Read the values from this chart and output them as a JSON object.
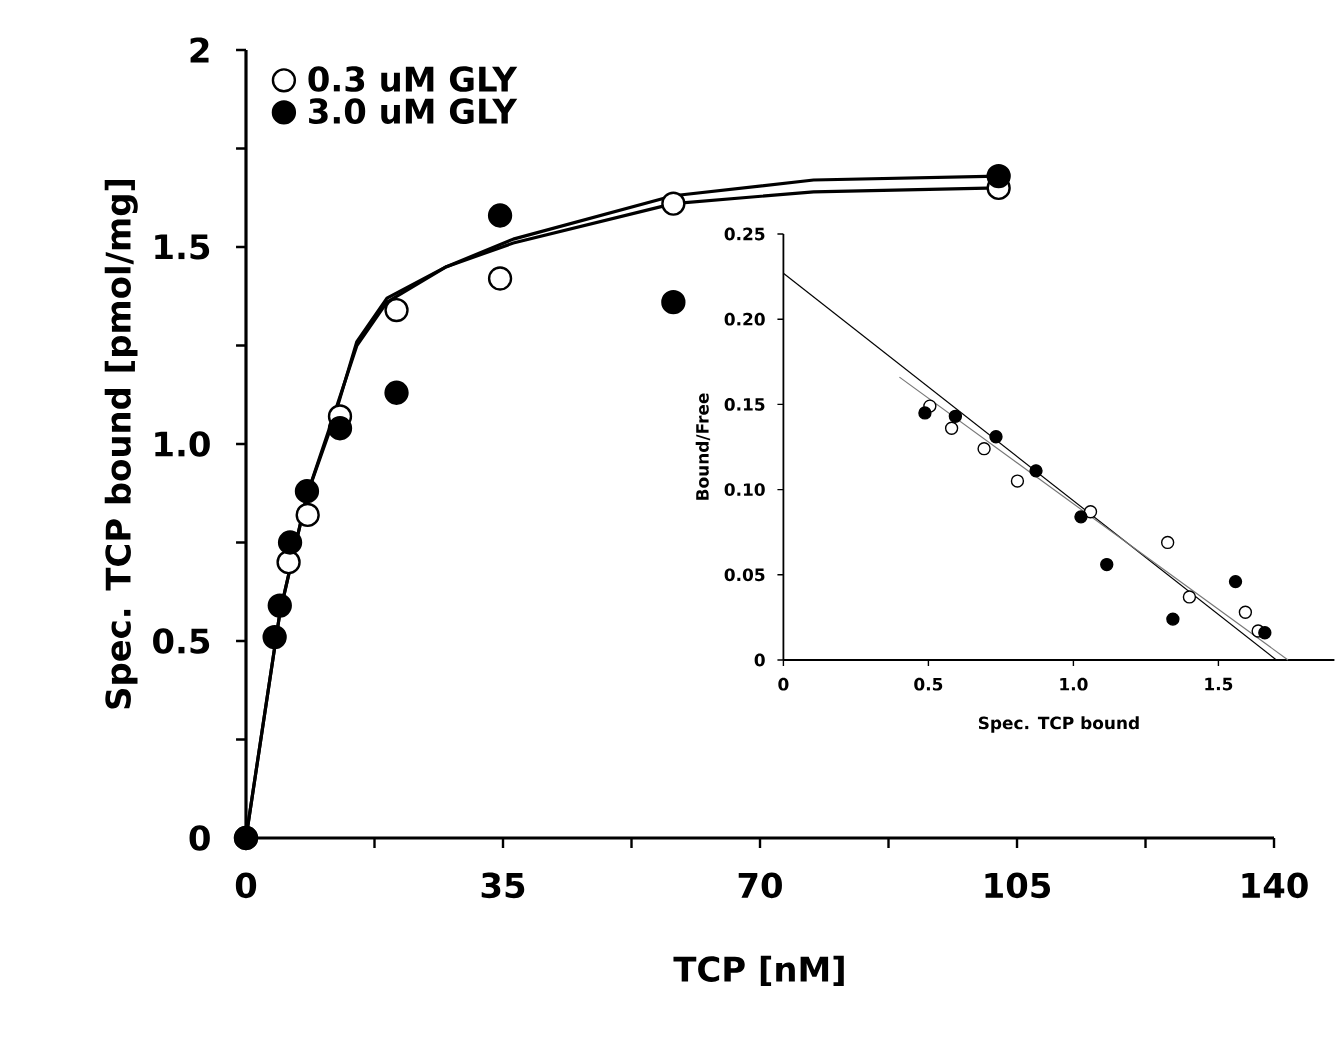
{
  "chart_data": [
    {
      "type": "scatter",
      "xlabel": "TCP [nM]",
      "ylabel": "Spec. TCP bound [pmol/mg]",
      "xlim": [
        0,
        140
      ],
      "ylim": [
        0,
        2
      ],
      "xticks": [
        0,
        {
          "value": 17.5,
          "label": null
        },
        35,
        {
          "value": 52.5,
          "label": null
        },
        70,
        {
          "value": 87.5,
          "label": null
        },
        105,
        {
          "value": 122.5,
          "label": null
        },
        140
      ],
      "yticks": [
        0,
        {
          "value": 0.25,
          "label": null
        },
        0.5,
        {
          "value": 0.75,
          "label": null
        },
        {
          "value": 1,
          "label": "1.0"
        },
        {
          "value": 1.25,
          "label": null
        },
        1.5,
        {
          "value": 1.75,
          "label": null
        },
        2
      ],
      "legend": "top left",
      "series": [
        {
          "name": "0.3 uM GLY",
          "color": "#ffffff",
          "marker": "circle",
          "x": [
            0,
            5.8,
            8.4,
            12.8,
            20.5,
            34.6,
            58.2,
            102.5
          ],
          "values": [
            0,
            0.7,
            0.82,
            1.07,
            1.34,
            1.42,
            1.61,
            1.65
          ]
        },
        {
          "name": "3.0 uM GLY",
          "color": "#000000",
          "marker": "circle",
          "x": [
            0,
            3.9,
            4.6,
            6.0,
            8.3,
            12.8,
            20.5,
            34.6,
            58.2,
            102.5
          ],
          "values": [
            0,
            0.51,
            0.59,
            0.75,
            0.88,
            1.04,
            1.13,
            1.58,
            1.36,
            1.68
          ]
        },
        {
          "type": "line",
          "color": "#000000",
          "marker": "none",
          "x": [
            0,
            4.6,
            8.3,
            11.9,
            15.1,
            19.2,
            27.3,
            36.4,
            58.2,
            77.3,
            102.5
          ],
          "values": [
            0,
            0.57,
            0.87,
            1.06,
            1.26,
            1.37,
            1.45,
            1.51,
            1.61,
            1.64,
            1.65
          ]
        },
        {
          "type": "line",
          "color": "#000000",
          "marker": "none",
          "x": [
            0,
            4.6,
            8.3,
            11.9,
            15.1,
            19.2,
            27.3,
            36.4,
            58.2,
            77.3,
            102.5
          ],
          "values": [
            0,
            0.57,
            0.87,
            1.07,
            1.25,
            1.36,
            1.45,
            1.52,
            1.63,
            1.67,
            1.68
          ]
        }
      ]
    },
    {
      "type": "scatter",
      "xlabel": "Spec. TCP bound",
      "ylabel": "Bound/Free",
      "xlim": [
        0,
        1.9
      ],
      "ylim": [
        0,
        0.25
      ],
      "xticks": [
        0,
        0.5,
        {
          "value": 1,
          "label": "1.0"
        },
        1.5
      ],
      "yticks": [
        0,
        0.05,
        {
          "value": 0.1,
          "label": "0.10"
        },
        0.15,
        {
          "value": 0.2,
          "label": "0.20"
        },
        0.25
      ],
      "series": [
        {
          "color": "#ffffff",
          "marker": "circle",
          "x": [
            0.505,
            0.58,
            0.692,
            0.807,
            1.059,
            1.325,
            1.4,
            1.593,
            1.637
          ],
          "values": [
            0.149,
            0.136,
            0.124,
            0.105,
            0.087,
            0.069,
            0.037,
            0.028,
            0.017
          ]
        },
        {
          "color": "#000000",
          "marker": "circle",
          "x": [
            0.488,
            0.593,
            0.733,
            0.871,
            1.026,
            1.115,
            1.343,
            1.559,
            1.66
          ],
          "values": [
            0.145,
            0.143,
            0.131,
            0.111,
            0.084,
            0.056,
            0.024,
            0.046,
            0.016
          ]
        },
        {
          "type": "line",
          "color": "#000000",
          "marker": "none",
          "x": [
            0,
            1.7
          ],
          "values": [
            0.227,
            0
          ]
        },
        {
          "type": "line",
          "color": "#777777",
          "marker": "none",
          "x": [
            0.4,
            1.74
          ],
          "values": [
            0.166,
            0
          ]
        }
      ]
    }
  ]
}
